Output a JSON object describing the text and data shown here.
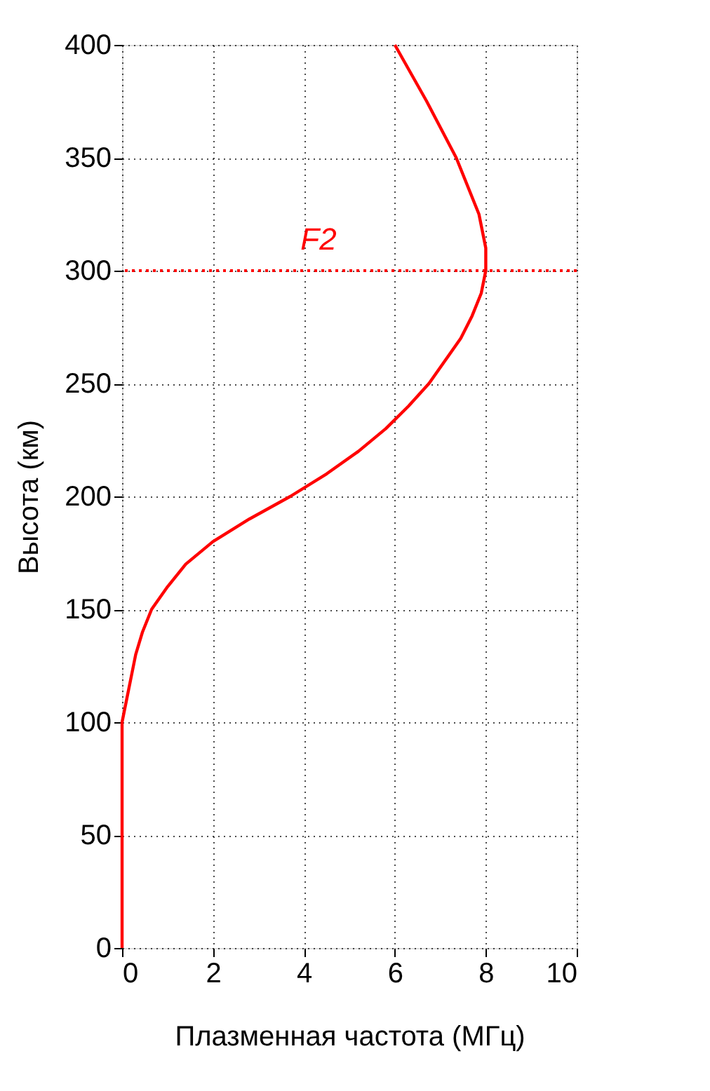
{
  "chart_data": {
    "type": "line",
    "xlabel": "Плазменная частота (МГц)",
    "ylabel": "Высота (км)",
    "xlim": [
      0,
      10
    ],
    "xticks": [
      0,
      2,
      4,
      6,
      8,
      10
    ],
    "ylim": [
      0,
      400
    ],
    "yticks": [
      0,
      50,
      100,
      150,
      200,
      250,
      300,
      350,
      400
    ],
    "grid": true,
    "marker": "none",
    "line_style": "solid",
    "series": [
      {
        "color": "#ff0000",
        "x": [
          0,
          0,
          0.1,
          0.2,
          0.3,
          0.45,
          0.65,
          1.0,
          1.4,
          2.0,
          2.8,
          3.7,
          4.5,
          5.2,
          5.8,
          6.3,
          6.75,
          7.1,
          7.45,
          7.7,
          7.9,
          8.0,
          8.0,
          7.85,
          7.35,
          6.7,
          6.0
        ],
        "values": [
          0,
          100,
          110,
          120,
          130,
          140,
          150,
          160,
          170,
          180,
          190,
          200,
          210,
          220,
          230,
          240,
          250,
          260,
          270,
          280,
          290,
          300,
          310,
          325,
          350,
          375,
          400
        ]
      }
    ],
    "ref_lines": [
      {
        "axis": "y",
        "value": 300,
        "label": "F2",
        "color": "#ff0000",
        "line_style": "dotted"
      }
    ]
  }
}
